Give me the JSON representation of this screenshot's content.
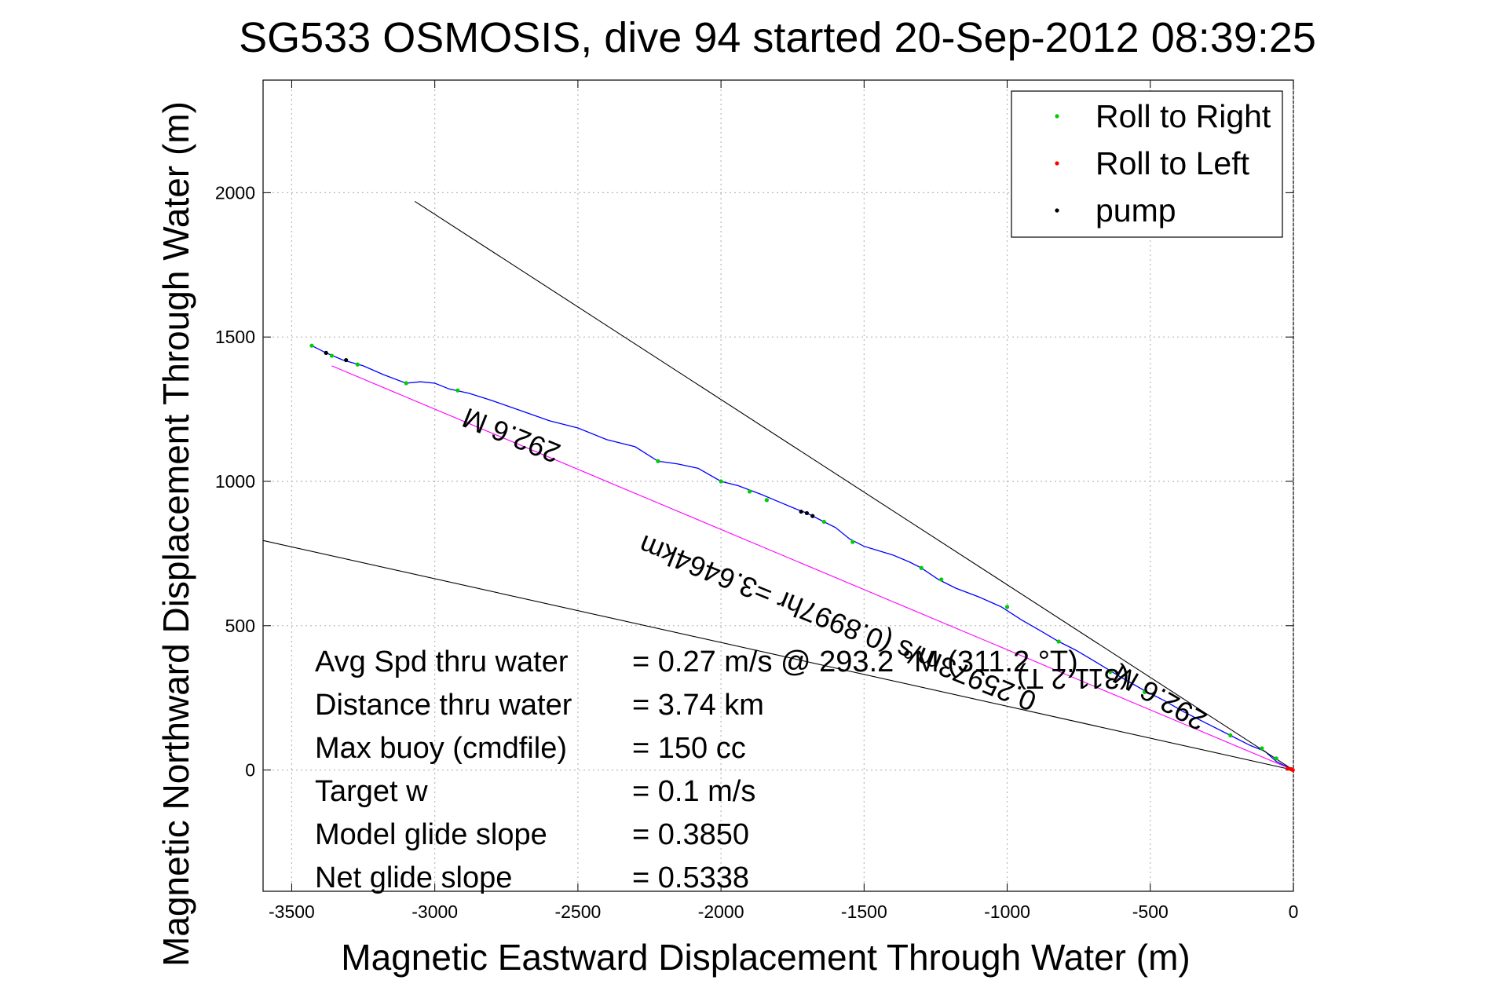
{
  "chart_data": {
    "type": "line",
    "title": "SG533 OSMOSIS, dive 94 started 20-Sep-2012 08:39:25",
    "xlabel": "Magnetic Eastward Displacement Through Water (m)",
    "ylabel": "Magnetic Northward Displacement Through Water (m)",
    "xlim": [
      -3600,
      0
    ],
    "ylim": [
      -420,
      2390
    ],
    "xticks": [
      -3500,
      -3000,
      -2500,
      -2000,
      -1500,
      -1000,
      -500,
      0
    ],
    "yticks": [
      0,
      500,
      1000,
      1500,
      2000
    ],
    "grid": true,
    "legend_position": "top-right",
    "legend": [
      {
        "label": "Roll to Right",
        "color": "#00cc00"
      },
      {
        "label": "Roll to Left",
        "color": "#ff0000"
      },
      {
        "label": "pump",
        "color": "#000000"
      }
    ],
    "series": [
      {
        "name": "",
        "kind": "track",
        "color": "#0000ff",
        "x": [
          -3430,
          -3380,
          -3320,
          -3250,
          -3180,
          -3100,
          -3050,
          -3000,
          -2950,
          -2880,
          -2800,
          -2700,
          -2600,
          -2500,
          -2400,
          -2300,
          -2220,
          -2150,
          -2080,
          -2000,
          -1940,
          -1860,
          -1800,
          -1740,
          -1700,
          -1640,
          -1600,
          -1550,
          -1500,
          -1450,
          -1400,
          -1340,
          -1300,
          -1240,
          -1180,
          -1100,
          -1020,
          -950,
          -880,
          -820,
          -760,
          -700,
          -650,
          -600,
          -520,
          -450,
          -380,
          -300,
          -220,
          -150,
          -100,
          -60,
          -20,
          0
        ],
        "y": [
          1470,
          1445,
          1420,
          1400,
          1370,
          1340,
          1345,
          1340,
          1320,
          1305,
          1280,
          1245,
          1210,
          1185,
          1145,
          1120,
          1070,
          1060,
          1045,
          1000,
          985,
          955,
          930,
          905,
          890,
          860,
          840,
          800,
          775,
          760,
          745,
          720,
          700,
          660,
          630,
          600,
          565,
          520,
          480,
          445,
          415,
          380,
          350,
          320,
          275,
          240,
          200,
          160,
          120,
          85,
          65,
          30,
          10,
          0
        ]
      },
      {
        "name": "",
        "kind": "fit",
        "color": "#ff00ff",
        "x": [
          -3360,
          0
        ],
        "y": [
          1400,
          0
        ]
      },
      {
        "name": "",
        "kind": "guide",
        "color": "#000000",
        "x": [
          -3070,
          0
        ],
        "y": [
          1970,
          0
        ]
      },
      {
        "name": "",
        "kind": "guide",
        "color": "#000000",
        "x": [
          -3600,
          0
        ],
        "y": [
          795,
          0
        ]
      },
      {
        "name": "Roll to Right",
        "kind": "markers",
        "color": "#00cc00",
        "x": [
          -3430,
          -3360,
          -3270,
          -3100,
          -2920,
          -2220,
          -2000,
          -1900,
          -1840,
          -1640,
          -1540,
          -1300,
          -1230,
          -1000,
          -820,
          -640,
          -520,
          -220,
          -110,
          -60
        ],
        "y": [
          1470,
          1435,
          1405,
          1340,
          1315,
          1070,
          1000,
          965,
          935,
          860,
          790,
          700,
          660,
          565,
          445,
          340,
          270,
          120,
          75,
          40
        ]
      },
      {
        "name": "Roll to Left",
        "kind": "markers",
        "color": "#ff0000",
        "x": [
          -20,
          -8,
          -2
        ],
        "y": [
          5,
          3,
          0
        ]
      },
      {
        "name": "pump",
        "kind": "markers",
        "color": "#000000",
        "x": [
          -3380,
          -3310,
          -1720,
          -1700,
          -1680
        ],
        "y": [
          1445,
          1420,
          895,
          890,
          880
        ]
      }
    ],
    "annotations": [
      {
        "text": "292.6 M",
        "x": -2720,
        "y": 1190,
        "angle": 22
      },
      {
        "text": "0.25973m/s (0.8997hr =3.6464km",
        "x": -1580,
        "y": 540,
        "angle": 22
      },
      {
        "text": "292.6 M",
        "x": -450,
        "y": 280,
        "angle": 30
      },
      {
        "text": "(311.2 T)",
        "x": -770,
        "y": 350,
        "angle": 0
      }
    ],
    "stats": [
      {
        "label": "Avg Spd thru water",
        "value": "=  0.27 m/s @ 293.2 °M (311.2 °T)"
      },
      {
        "label": "Distance thru water",
        "value": "=  3.74 km"
      },
      {
        "label": "Max buoy (cmdfile)",
        "value": "= 150 cc"
      },
      {
        "label": "Target w",
        "value": "= 0.1 m/s"
      },
      {
        "label": "Model glide slope",
        "value": "= 0.3850"
      },
      {
        "label": "Net glide slope",
        "value": "= 0.5338"
      }
    ]
  }
}
